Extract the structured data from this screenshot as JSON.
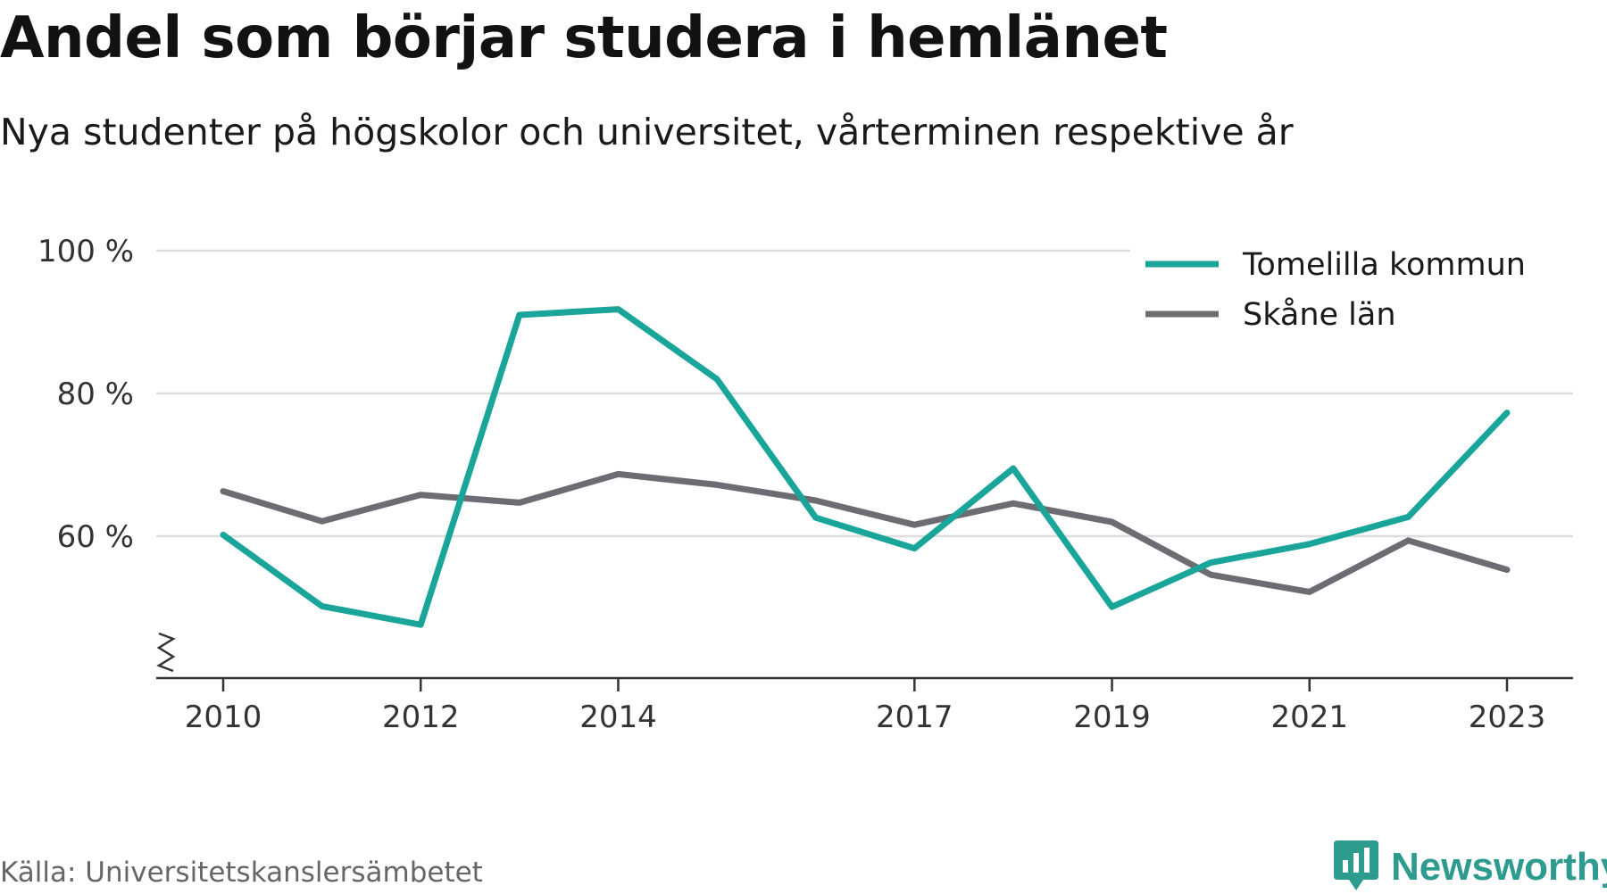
{
  "header": {
    "title": "Andel som börjar studera i hemlänet",
    "subtitle": "Nya studenter på högskolor och universitet, vårterminen respektive år"
  },
  "footer": {
    "source": "Källa: Universitetskanslersämbetet",
    "brand": "Newsworthy"
  },
  "colors": {
    "tomelilla": "#1aa59a",
    "skane": "#6e6c73",
    "grid": "#dddddd",
    "axis": "#333333",
    "brand": "#2e9b8f"
  },
  "icons": [
    "newsworthy-logo-icon",
    "axis-break-icon"
  ],
  "chart_data": {
    "type": "line",
    "title": "Andel som börjar studera i hemlänet",
    "subtitle": "Nya studenter på högskolor och universitet, vårterminen respektive år",
    "x": [
      2010,
      2011,
      2012,
      2013,
      2014,
      2015,
      2016,
      2017,
      2018,
      2019,
      2020,
      2021,
      2022,
      2023
    ],
    "x_ticks": [
      "2010",
      "2012",
      "2014",
      "2017",
      "2019",
      "2021",
      "2023"
    ],
    "y_ticks": [
      "60 %",
      "80 %",
      "100 %"
    ],
    "y_tick_values": [
      60,
      80,
      100
    ],
    "ylim": [
      40,
      100
    ],
    "y_axis_break": true,
    "grid": true,
    "legend_position": "top-right",
    "series": [
      {
        "name": "Tomelilla kommun",
        "color": "#1aa59a",
        "values": [
          60.2,
          50.2,
          47.6,
          91.0,
          91.8,
          82.0,
          62.6,
          58.3,
          69.5,
          50.1,
          56.3,
          58.9,
          62.7,
          77.3
        ]
      },
      {
        "name": "Skåne län",
        "color": "#6e6c73",
        "values": [
          66.3,
          62.1,
          65.8,
          64.7,
          68.7,
          67.2,
          65.0,
          61.6,
          64.6,
          62.0,
          54.6,
          52.2,
          59.4,
          55.3
        ]
      }
    ],
    "legend": [
      "Tomelilla kommun",
      "Skåne län"
    ]
  }
}
